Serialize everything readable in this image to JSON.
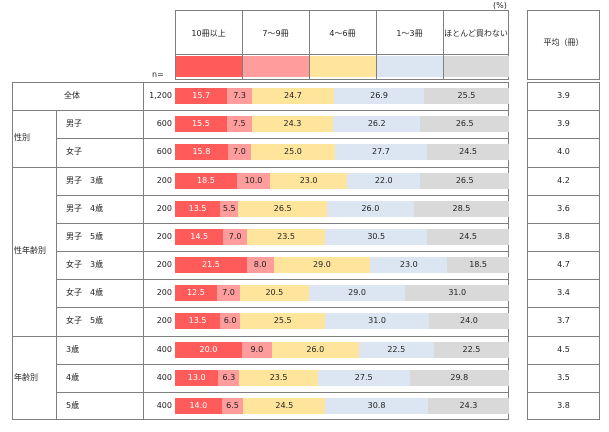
{
  "chart_data": {
    "type": "bar",
    "unit_label": "(%)",
    "n_label": "n=",
    "avg_header": "平均（冊）",
    "legend": [
      {
        "name": "10冊以上",
        "color": "#ff5b5b"
      },
      {
        "name": "7～9冊",
        "color": "#ff9c9c"
      },
      {
        "name": "4～6冊",
        "color": "#ffe59c"
      },
      {
        "name": "1～3冊",
        "color": "#dce6f2"
      },
      {
        "name": "ほとんど買わない",
        "color": "#d9d9d9"
      }
    ],
    "rows": [
      {
        "group": "",
        "label": "全体",
        "n": "1,200",
        "values": [
          15.7,
          7.3,
          24.7,
          26.9,
          25.5
        ],
        "avg": "3.9"
      },
      {
        "group": "性別",
        "label": "男子",
        "n": "600",
        "values": [
          15.5,
          7.5,
          24.3,
          26.2,
          26.5
        ],
        "avg": "3.9"
      },
      {
        "group": "",
        "label": "女子",
        "n": "600",
        "values": [
          15.8,
          7.0,
          25.0,
          27.7,
          24.5
        ],
        "avg": "4.0"
      },
      {
        "group": "",
        "label": "男子　3歳",
        "n": "200",
        "values": [
          18.5,
          10.0,
          23.0,
          22.0,
          26.5
        ],
        "avg": "4.2"
      },
      {
        "group": "",
        "label": "男子　4歳",
        "n": "200",
        "values": [
          13.5,
          5.5,
          26.5,
          26.0,
          28.5
        ],
        "avg": "3.6"
      },
      {
        "group": "",
        "label": "男子　5歳",
        "n": "200",
        "values": [
          14.5,
          7.0,
          23.5,
          30.5,
          24.5
        ],
        "avg": "3.8"
      },
      {
        "group": "性年齢別",
        "label": "女子　3歳",
        "n": "200",
        "values": [
          21.5,
          8.0,
          29.0,
          23.0,
          18.5
        ],
        "avg": "4.7"
      },
      {
        "group": "",
        "label": "女子　4歳",
        "n": "200",
        "values": [
          12.5,
          7.0,
          20.5,
          29.0,
          31.0
        ],
        "avg": "3.4"
      },
      {
        "group": "",
        "label": "女子　5歳",
        "n": "200",
        "values": [
          13.5,
          6.0,
          25.5,
          31.0,
          24.0
        ],
        "avg": "3.7"
      },
      {
        "group": "",
        "label": "3歳",
        "n": "400",
        "values": [
          20.0,
          9.0,
          26.0,
          22.5,
          22.5
        ],
        "avg": "4.5"
      },
      {
        "group": "年齢別",
        "label": "4歳",
        "n": "400",
        "values": [
          13.0,
          6.3,
          23.5,
          27.5,
          29.8
        ],
        "avg": "3.5"
      },
      {
        "group": "",
        "label": "5歳",
        "n": "400",
        "values": [
          14.0,
          6.5,
          24.5,
          30.8,
          24.3
        ],
        "avg": "3.8"
      }
    ],
    "value_labels": [
      [
        "15.7",
        "7.3",
        "24.7",
        "26.9",
        "25.5"
      ],
      [
        "15.5",
        "7.5",
        "24.3",
        "26.2",
        "26.5"
      ],
      [
        "15.8",
        "7.0",
        "25.0",
        "27.7",
        "24.5"
      ],
      [
        "18.5",
        "10.0",
        "23.0",
        "22.0",
        "26.5"
      ],
      [
        "13.5",
        "5.5",
        "26.5",
        "26.0",
        "28.5"
      ],
      [
        "14.5",
        "7.0",
        "23.5",
        "30.5",
        "24.5"
      ],
      [
        "21.5",
        "8.0",
        "29.0",
        "23.0",
        "18.5"
      ],
      [
        "12.5",
        "7.0",
        "20.5",
        "29.0",
        "31.0"
      ],
      [
        "13.5",
        "6.0",
        "25.5",
        "31.0",
        "24.0"
      ],
      [
        "20.0",
        "9.0",
        "26.0",
        "22.5",
        "22.5"
      ],
      [
        "13.0",
        "6.3",
        "23.5",
        "27.5",
        "29.8"
      ],
      [
        "14.0",
        "6.5",
        "24.5",
        "30.8",
        "24.3"
      ]
    ]
  }
}
